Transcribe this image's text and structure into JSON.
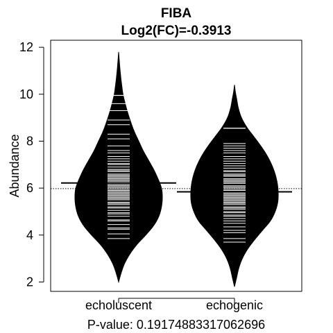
{
  "chart_data": {
    "type": "beanplot",
    "title": "FIBA",
    "subtitle": "Log2(FC)=-0.3913",
    "ylabel": "Abundance",
    "xlabel": "P-value: 0.19174883317062696",
    "categories": [
      "echoluscent",
      "echogenic"
    ],
    "ylim": [
      1.6,
      12.3
    ],
    "yticks": [
      2,
      4,
      6,
      8,
      10,
      12
    ],
    "overall_mean": 5.98,
    "series": [
      {
        "group_mean": 6.22,
        "density_range": [
          2.0,
          11.8
        ],
        "density": [
          [
            2.0,
            0.0
          ],
          [
            2.4,
            0.06
          ],
          [
            2.8,
            0.14
          ],
          [
            3.2,
            0.26
          ],
          [
            3.6,
            0.42
          ],
          [
            4.0,
            0.62
          ],
          [
            4.4,
            0.8
          ],
          [
            4.8,
            0.92
          ],
          [
            5.2,
            0.98
          ],
          [
            5.6,
            1.0
          ],
          [
            6.0,
            0.98
          ],
          [
            6.4,
            0.9
          ],
          [
            6.8,
            0.8
          ],
          [
            7.2,
            0.68
          ],
          [
            7.6,
            0.56
          ],
          [
            8.0,
            0.46
          ],
          [
            8.4,
            0.36
          ],
          [
            8.8,
            0.28
          ],
          [
            9.2,
            0.21
          ],
          [
            9.6,
            0.15
          ],
          [
            10.0,
            0.1
          ],
          [
            10.4,
            0.07
          ],
          [
            10.8,
            0.045
          ],
          [
            11.2,
            0.025
          ],
          [
            11.8,
            0.0
          ]
        ],
        "observations": [
          3.85,
          4.05,
          4.25,
          4.3,
          4.45,
          4.6,
          4.65,
          4.8,
          4.9,
          4.95,
          5.05,
          5.15,
          5.2,
          5.3,
          5.35,
          5.4,
          5.5,
          5.55,
          5.6,
          5.65,
          5.7,
          5.75,
          5.8,
          5.85,
          5.9,
          5.95,
          6.0,
          6.05,
          6.1,
          6.15,
          6.2,
          6.25,
          6.3,
          6.35,
          6.4,
          6.45,
          6.5,
          6.55,
          6.6,
          6.7,
          6.75,
          6.8,
          6.9,
          7.0,
          7.05,
          7.15,
          7.25,
          7.35,
          7.5,
          7.6,
          7.8,
          8.1,
          8.3,
          8.7,
          8.9,
          9.3,
          9.6,
          9.95
        ]
      },
      {
        "group_mean": 5.84,
        "density_range": [
          1.8,
          10.4
        ],
        "density": [
          [
            1.8,
            0.0
          ],
          [
            2.2,
            0.05
          ],
          [
            2.6,
            0.1
          ],
          [
            3.0,
            0.18
          ],
          [
            3.4,
            0.3
          ],
          [
            3.8,
            0.46
          ],
          [
            4.2,
            0.64
          ],
          [
            4.6,
            0.82
          ],
          [
            5.0,
            0.93
          ],
          [
            5.4,
            0.99
          ],
          [
            5.8,
            1.0
          ],
          [
            6.2,
            0.98
          ],
          [
            6.6,
            0.93
          ],
          [
            7.0,
            0.85
          ],
          [
            7.4,
            0.74
          ],
          [
            7.8,
            0.6
          ],
          [
            8.2,
            0.44
          ],
          [
            8.6,
            0.28
          ],
          [
            9.0,
            0.16
          ],
          [
            9.4,
            0.09
          ],
          [
            9.8,
            0.05
          ],
          [
            10.1,
            0.02
          ],
          [
            10.4,
            0.0
          ]
        ],
        "observations": [
          3.7,
          3.85,
          4.1,
          4.2,
          4.35,
          4.5,
          4.6,
          4.7,
          4.8,
          4.85,
          4.95,
          5.0,
          5.1,
          5.15,
          5.2,
          5.3,
          5.35,
          5.4,
          5.45,
          5.5,
          5.55,
          5.6,
          5.65,
          5.7,
          5.75,
          5.8,
          5.85,
          5.9,
          5.95,
          6.0,
          6.05,
          6.1,
          6.2,
          6.25,
          6.3,
          6.35,
          6.4,
          6.5,
          6.55,
          6.6,
          6.7,
          6.75,
          6.85,
          6.95,
          7.05,
          7.15,
          7.25,
          7.35,
          7.5,
          7.6,
          7.7,
          7.8,
          7.9,
          8.55
        ]
      }
    ],
    "colors": {
      "bean_fill": "#000000",
      "bean_line": "#000000",
      "rug_line": "#ffffff",
      "frame": "#000000",
      "background": "#ffffff"
    }
  }
}
